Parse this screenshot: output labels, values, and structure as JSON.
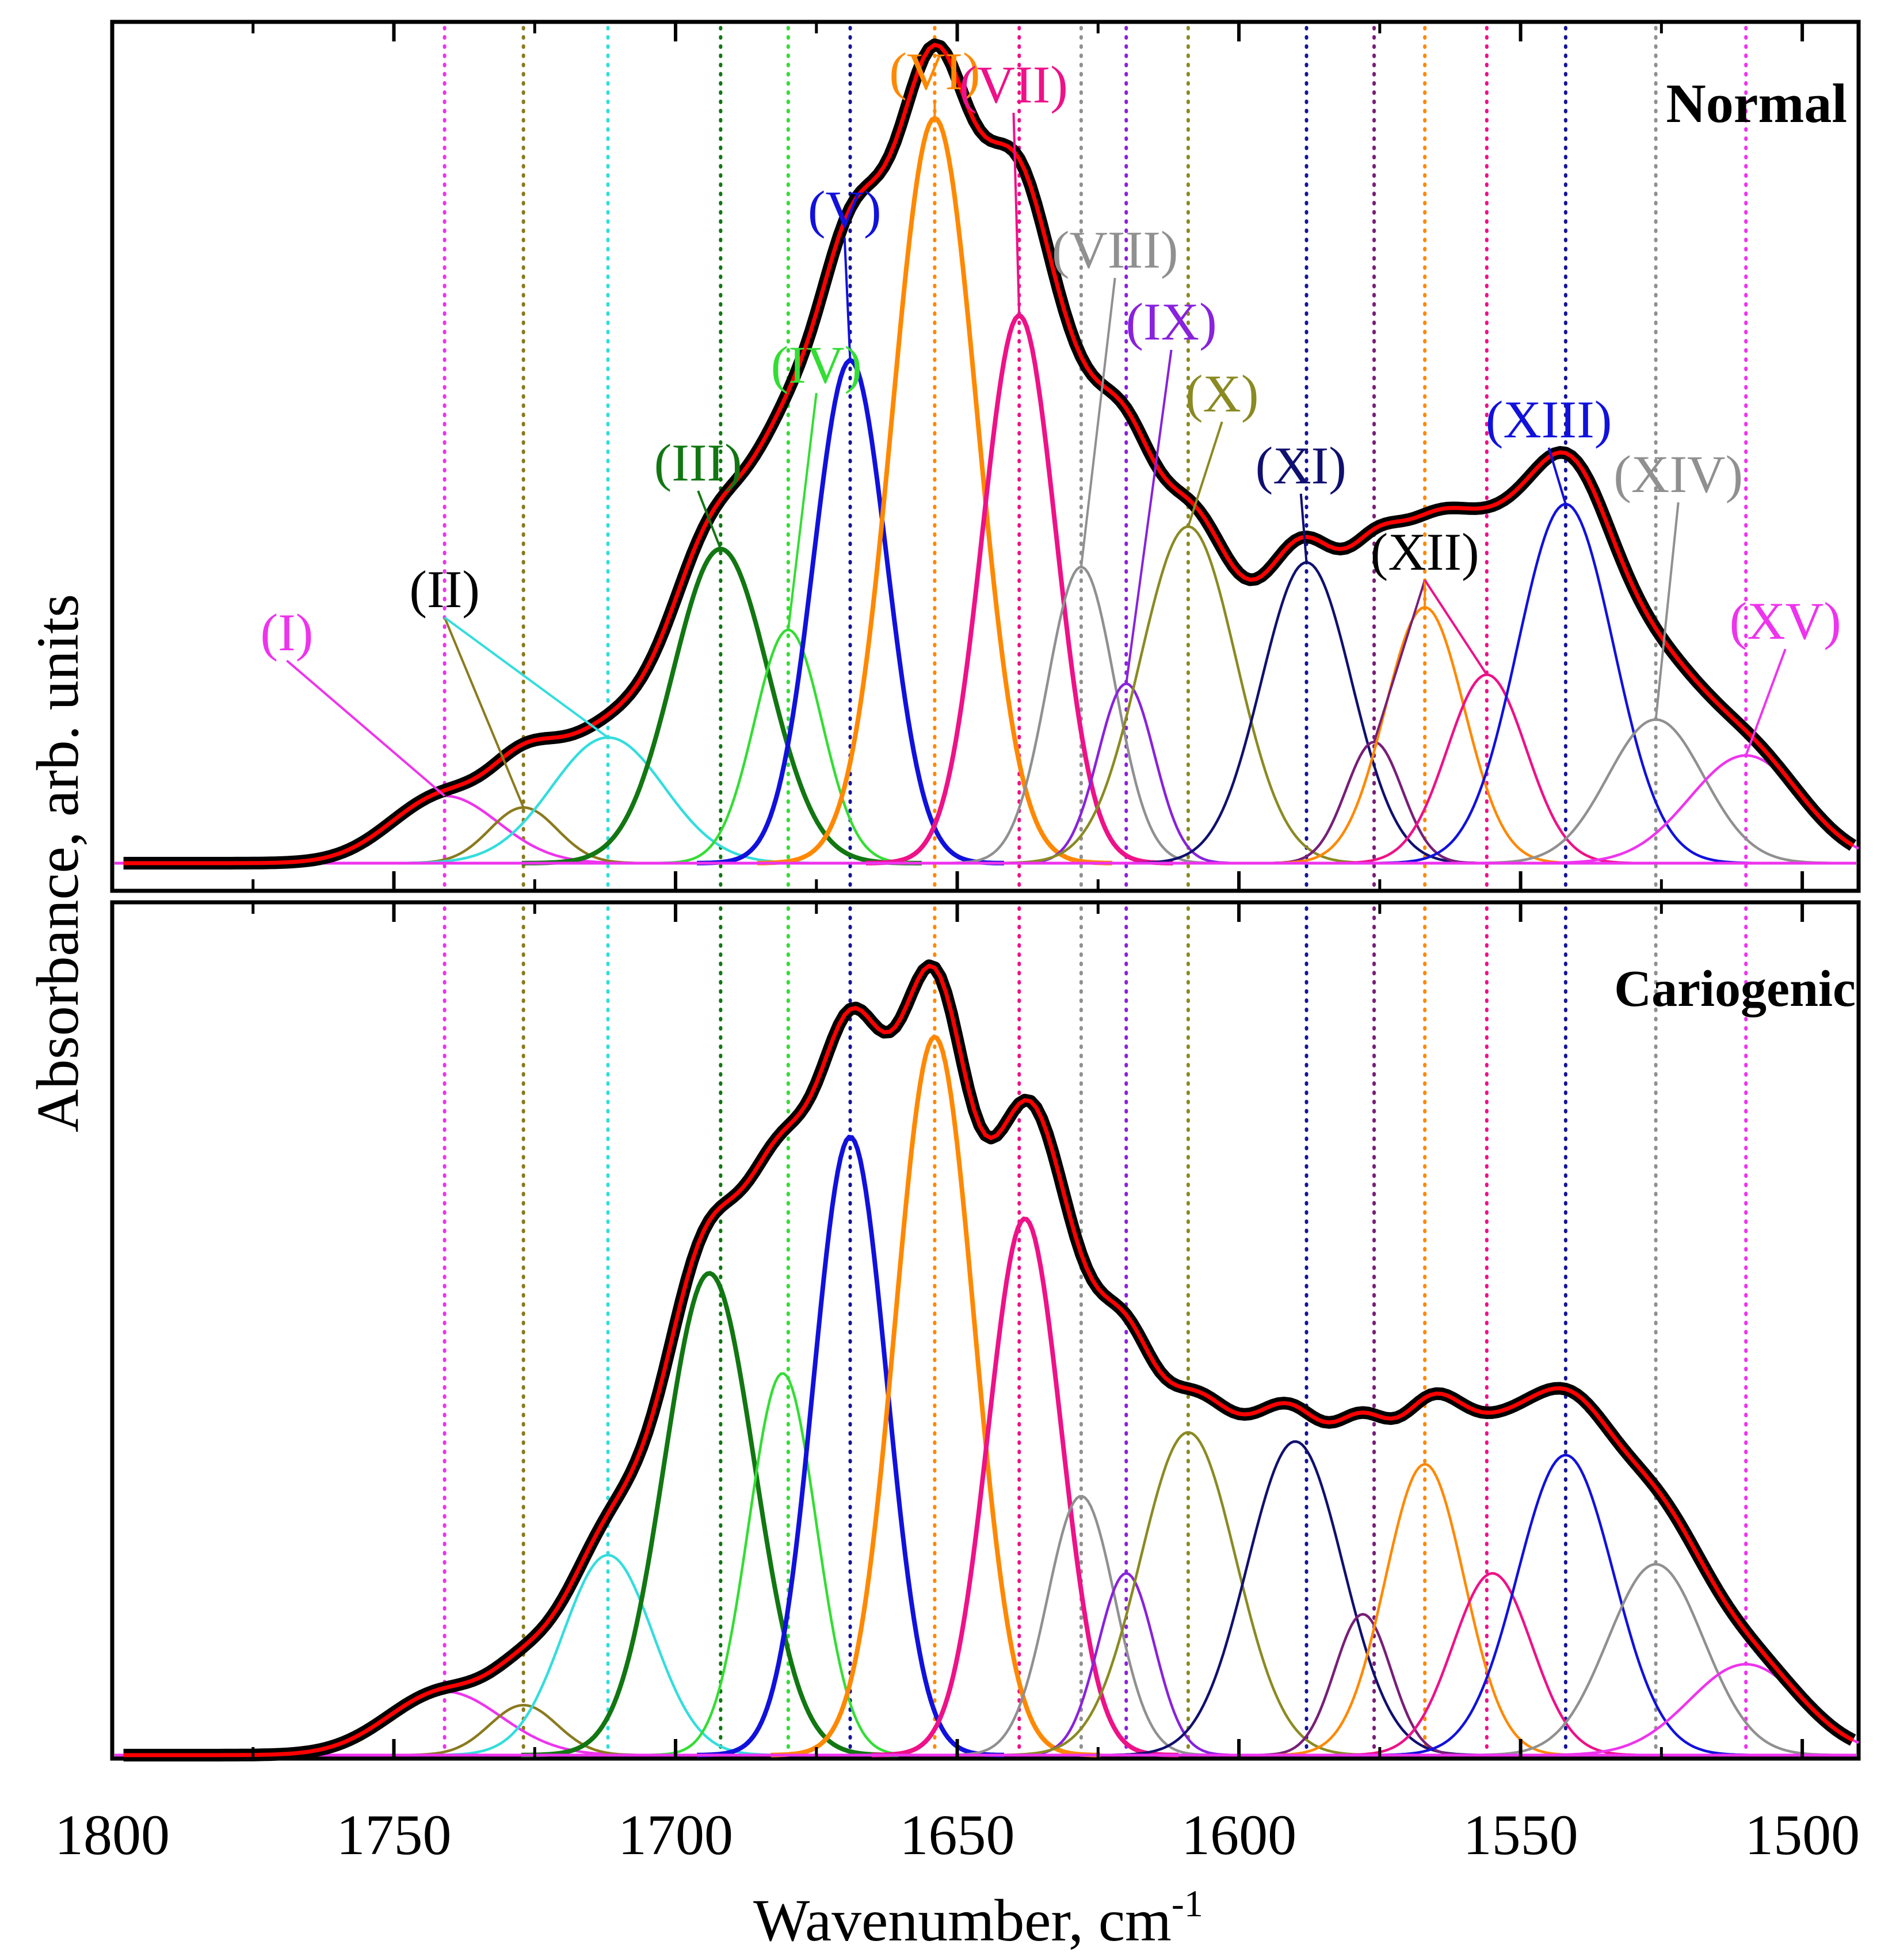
{
  "chart_data": {
    "type": "line",
    "subtype": "ftir-band-deconvolution",
    "xlabel": "Wavenumber, cm",
    "xlabel_superscript": "-1",
    "ylabel": "Absorbance, arb. units",
    "xlim": [
      1800,
      1490
    ],
    "x_ticks": [
      1800,
      1750,
      1700,
      1650,
      1600,
      1550,
      1500
    ],
    "x_tick_labels": [
      "1800",
      "1750",
      "1700",
      "1650",
      "1600",
      "1550",
      "1500"
    ],
    "band_positions": [
      1741,
      1727,
      1712,
      1692,
      1680,
      1669,
      1654,
      1639,
      1628,
      1620,
      1609,
      1588,
      1576,
      1567,
      1556,
      1542,
      1526,
      1510
    ],
    "colors": {
      "experimental_points": "#000000",
      "fit_curve": "#ff0000",
      "I": "#ee33ee",
      "II": "#8a7a1e",
      "II_b": "#33dddd",
      "III": "#127712",
      "IV": "#33dd33",
      "V": "#1111dd",
      "VI": "#ff8800",
      "VII": "#ee1188",
      "VIII": "#909090",
      "IX": "#8822dd",
      "X": "#8a8a22",
      "XI": "#101070",
      "XII_a": "#771f77",
      "XII_b": "#ff8800",
      "XII_c": "#ee1188",
      "XIII": "#1111dd",
      "XIV": "#909090",
      "XV": "#ee33ee"
    },
    "band_labels": [
      "(I)",
      "(II)",
      "(III)",
      "(IV)",
      "(V)",
      "(VI)",
      "(VII)",
      "(VIII)",
      "(IX)",
      "(X)",
      "(XI)",
      "(XII)",
      "(XIII)",
      "(XIV)",
      "(XV)"
    ],
    "panels": [
      {
        "name": "Normal",
        "title": "Normal",
        "components": [
          {
            "label": "I",
            "center": 1741,
            "amplitude": 0.075,
            "width": 9.5
          },
          {
            "label": "II",
            "center": 1727,
            "amplitude": 0.062,
            "width": 6
          },
          {
            "label": "II_b",
            "center": 1712,
            "amplitude": 0.14,
            "width": 10
          },
          {
            "label": "III",
            "center": 1692,
            "amplitude": 0.35,
            "width": 8.5
          },
          {
            "label": "IV",
            "center": 1680,
            "amplitude": 0.26,
            "width": 6
          },
          {
            "label": "V",
            "center": 1669,
            "amplitude": 0.56,
            "width": 6.5
          },
          {
            "label": "VI",
            "center": 1654,
            "amplitude": 0.83,
            "width": 7.5
          },
          {
            "label": "VII",
            "center": 1639,
            "amplitude": 0.61,
            "width": 6.5
          },
          {
            "label": "VIII",
            "center": 1628,
            "amplitude": 0.33,
            "width": 6
          },
          {
            "label": "IX",
            "center": 1620,
            "amplitude": 0.2,
            "width": 5
          },
          {
            "label": "X",
            "center": 1609,
            "amplitude": 0.375,
            "width": 8.5
          },
          {
            "label": "XI",
            "center": 1588,
            "amplitude": 0.335,
            "width": 8
          },
          {
            "label": "XII_a",
            "center": 1576,
            "amplitude": 0.135,
            "width": 5
          },
          {
            "label": "XII_b",
            "center": 1567,
            "amplitude": 0.285,
            "width": 7
          },
          {
            "label": "XII_c",
            "center": 1556,
            "amplitude": 0.21,
            "width": 7
          },
          {
            "label": "XIII",
            "center": 1542,
            "amplitude": 0.4,
            "width": 8.5
          },
          {
            "label": "XIV",
            "center": 1526,
            "amplitude": 0.16,
            "width": 8.5
          },
          {
            "label": "XV",
            "center": 1510,
            "amplitude": 0.12,
            "width": 10
          }
        ]
      },
      {
        "name": "Cariogenic",
        "title": "Cariogenic",
        "components": [
          {
            "label": "I",
            "center": 1741,
            "amplitude": 0.07,
            "width": 10
          },
          {
            "label": "II",
            "center": 1727,
            "amplitude": 0.055,
            "width": 6
          },
          {
            "label": "II_b",
            "center": 1712,
            "amplitude": 0.22,
            "width": 8
          },
          {
            "label": "III",
            "center": 1694,
            "amplitude": 0.53,
            "width": 8
          },
          {
            "label": "IV",
            "center": 1681,
            "amplitude": 0.42,
            "width": 6
          },
          {
            "label": "V",
            "center": 1669,
            "amplitude": 0.68,
            "width": 6.5
          },
          {
            "label": "VI",
            "center": 1654,
            "amplitude": 0.79,
            "width": 7
          },
          {
            "label": "VII",
            "center": 1638,
            "amplitude": 0.59,
            "width": 6.5
          },
          {
            "label": "VIII",
            "center": 1628,
            "amplitude": 0.285,
            "width": 6
          },
          {
            "label": "IX",
            "center": 1620,
            "amplitude": 0.2,
            "width": 5
          },
          {
            "label": "X",
            "center": 1609,
            "amplitude": 0.355,
            "width": 8.5
          },
          {
            "label": "XI",
            "center": 1590,
            "amplitude": 0.345,
            "width": 8.5
          },
          {
            "label": "XII_a",
            "center": 1578,
            "amplitude": 0.155,
            "width": 5
          },
          {
            "label": "XII_b",
            "center": 1567,
            "amplitude": 0.32,
            "width": 7
          },
          {
            "label": "XII_c",
            "center": 1555,
            "amplitude": 0.2,
            "width": 7
          },
          {
            "label": "XIII",
            "center": 1542,
            "amplitude": 0.33,
            "width": 8.5
          },
          {
            "label": "XIV",
            "center": 1526,
            "amplitude": 0.21,
            "width": 8.5
          },
          {
            "label": "XV",
            "center": 1510,
            "amplitude": 0.1,
            "width": 10
          }
        ]
      }
    ],
    "baseline_normal": 0.0,
    "baseline_cariogenic": 0.0
  }
}
